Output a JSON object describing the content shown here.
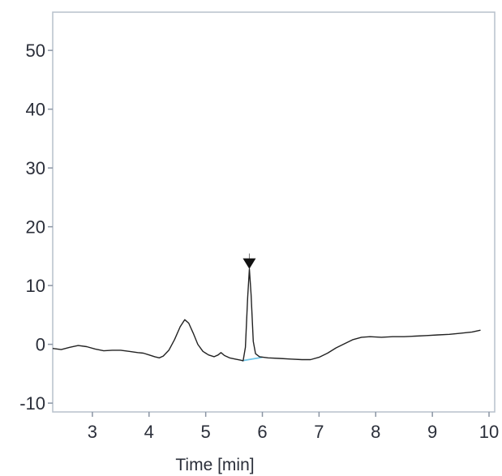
{
  "chart_data": {
    "type": "line",
    "title": "",
    "xlabel": "Time [min]",
    "ylabel": "",
    "xlim": [
      2.3,
      10.1
    ],
    "ylim": [
      -11.5,
      56.5
    ],
    "xticks": [
      3,
      4,
      5,
      6,
      7,
      8,
      9,
      10
    ],
    "yticks": [
      -10,
      0,
      10,
      20,
      30,
      40,
      50
    ],
    "grid": false,
    "series": [
      {
        "color": "#222222",
        "points": [
          [
            2.3,
            -0.7
          ],
          [
            2.45,
            -0.9
          ],
          [
            2.6,
            -0.5
          ],
          [
            2.75,
            -0.2
          ],
          [
            2.9,
            -0.4
          ],
          [
            3.05,
            -0.8
          ],
          [
            3.2,
            -1.1
          ],
          [
            3.35,
            -1.0
          ],
          [
            3.5,
            -1.0
          ],
          [
            3.65,
            -1.2
          ],
          [
            3.8,
            -1.4
          ],
          [
            3.9,
            -1.5
          ],
          [
            4.0,
            -1.8
          ],
          [
            4.1,
            -2.1
          ],
          [
            4.18,
            -2.3
          ],
          [
            4.25,
            -2.0
          ],
          [
            4.35,
            -1.0
          ],
          [
            4.45,
            0.8
          ],
          [
            4.55,
            3.0
          ],
          [
            4.63,
            4.2
          ],
          [
            4.7,
            3.6
          ],
          [
            4.78,
            1.9
          ],
          [
            4.86,
            0.0
          ],
          [
            4.95,
            -1.2
          ],
          [
            5.05,
            -1.8
          ],
          [
            5.15,
            -2.1
          ],
          [
            5.22,
            -1.8
          ],
          [
            5.27,
            -1.4
          ],
          [
            5.33,
            -1.9
          ],
          [
            5.42,
            -2.3
          ],
          [
            5.52,
            -2.5
          ],
          [
            5.62,
            -2.7
          ],
          [
            5.66,
            -2.8
          ],
          [
            5.7,
            -0.5
          ],
          [
            5.74,
            8.0
          ],
          [
            5.77,
            12.8
          ],
          [
            5.8,
            8.5
          ],
          [
            5.84,
            0.5
          ],
          [
            5.88,
            -1.6
          ],
          [
            5.95,
            -2.1
          ],
          [
            6.1,
            -2.3
          ],
          [
            6.3,
            -2.4
          ],
          [
            6.5,
            -2.5
          ],
          [
            6.7,
            -2.6
          ],
          [
            6.85,
            -2.6
          ],
          [
            7.0,
            -2.2
          ],
          [
            7.15,
            -1.5
          ],
          [
            7.3,
            -0.6
          ],
          [
            7.45,
            0.1
          ],
          [
            7.6,
            0.8
          ],
          [
            7.75,
            1.2
          ],
          [
            7.9,
            1.3
          ],
          [
            8.1,
            1.2
          ],
          [
            8.3,
            1.3
          ],
          [
            8.5,
            1.3
          ],
          [
            8.7,
            1.4
          ],
          [
            8.9,
            1.5
          ],
          [
            9.1,
            1.6
          ],
          [
            9.3,
            1.7
          ],
          [
            9.5,
            1.9
          ],
          [
            9.7,
            2.1
          ],
          [
            9.85,
            2.4
          ]
        ]
      }
    ],
    "baseline": {
      "color": "#6ec6e8",
      "points": [
        [
          5.64,
          -2.8
        ],
        [
          6.0,
          -2.2
        ]
      ]
    },
    "annotations": [
      {
        "type": "peak-marker",
        "x": 5.77,
        "y": 13.8,
        "color": "#111111"
      }
    ]
  }
}
